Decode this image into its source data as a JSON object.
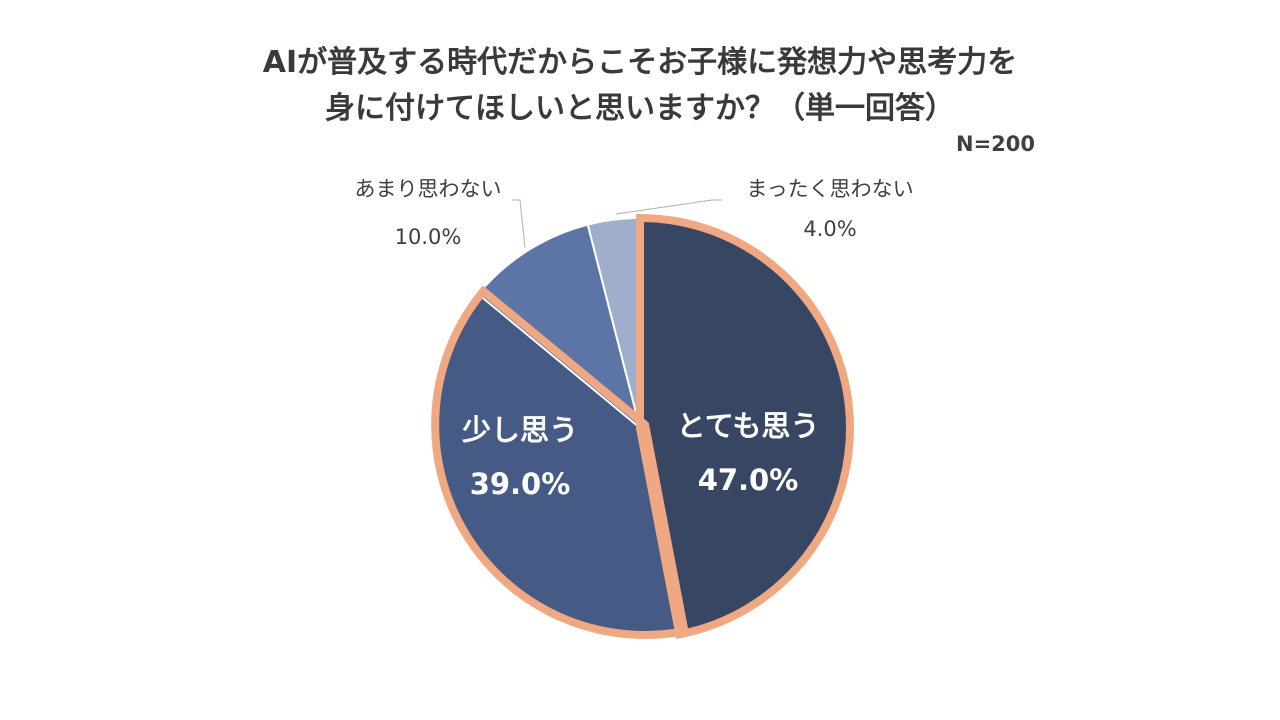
{
  "title": {
    "line1": "AIが普及する時代だからこそお子様に発想力や思考力を",
    "line2": "身に付けてほしいと思いますか？（単一回答）"
  },
  "sample_size": "N=200",
  "chart_data": {
    "type": "pie",
    "title": "AIが普及する時代だからこそお子様に発想力や思考力を身に付けてほしいと思いますか？（単一回答）",
    "slices": [
      {
        "label": "とても思う",
        "value": 47.0,
        "value_label": "47.0%",
        "color": "#374663",
        "highlight": true,
        "label_position": "inside"
      },
      {
        "label": "少し思う",
        "value": 39.0,
        "value_label": "39.0%",
        "color": "#455A84",
        "highlight": true,
        "label_position": "inside"
      },
      {
        "label": "あまり思わない",
        "value": 10.0,
        "value_label": "10.0%",
        "color": "#5D75A6",
        "highlight": false,
        "label_position": "outside"
      },
      {
        "label": "まったく思わない",
        "value": 4.0,
        "value_label": "4.0%",
        "color": "#9FAECB",
        "highlight": false,
        "label_position": "outside"
      }
    ],
    "highlight_color": "#F0A882",
    "start": "top",
    "direction": "clockwise",
    "legend": "none"
  }
}
